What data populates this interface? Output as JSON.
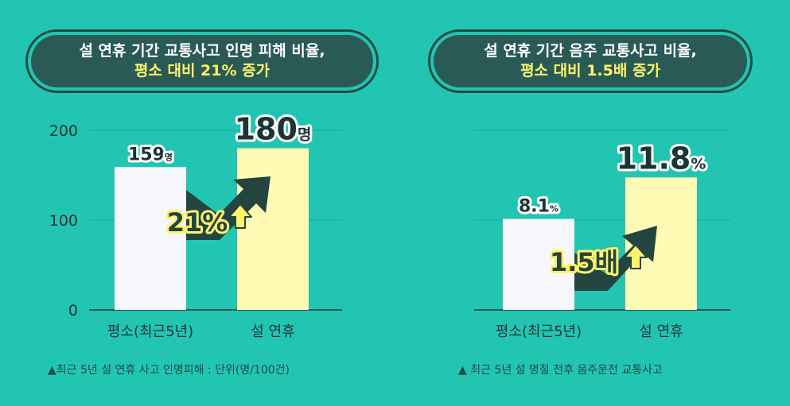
{
  "left": {
    "title_line1": "설 연휴 기간 교통사고 인명 피해 비율,",
    "title_line2": "평소 대비 21% 증가",
    "badge_text": "21%",
    "note": "▲최근 5년 설 연휴 사고 인명피해 : 단위(명/100건)"
  },
  "right": {
    "title_line1": "설 연휴 기간 음주 교통사고 비율,",
    "title_line2": "평소 대비 1.5배 증가",
    "badge_text": "1.5배",
    "note": "▲ 최근 5년 설 명절 전후 음주운전 교통사고"
  },
  "colors": {
    "background": "#22c5b2",
    "pill_bg": "#2a5a56",
    "highlight_yellow": "#fff36b",
    "bar_baseline": "#f6f7fb",
    "bar_holiday": "#fffbb5",
    "arrow_dark": "#24443f",
    "text_dark": "#1b3532"
  },
  "icons": [
    "up-arrow-icon",
    "trend-arrow-icon"
  ],
  "chart_data": [
    {
      "type": "bar",
      "categories": [
        "평소(최근5년)",
        "설 연휴"
      ],
      "values": [
        159,
        180
      ],
      "value_labels": [
        {
          "num": "159",
          "unit": "명"
        },
        {
          "num": "180",
          "unit": "명"
        }
      ],
      "ylim": [
        0,
        200
      ],
      "yticks": [
        "0",
        "100",
        "200"
      ],
      "grid": true
    },
    {
      "type": "bar",
      "categories": [
        "평소(최근5년)",
        "설 연휴"
      ],
      "values": [
        8.1,
        11.8
      ],
      "value_labels": [
        {
          "num": "8.1",
          "unit": "%"
        },
        {
          "num": "11.8",
          "unit": "%"
        }
      ],
      "ylim": [
        0,
        16
      ],
      "grid": true
    }
  ]
}
